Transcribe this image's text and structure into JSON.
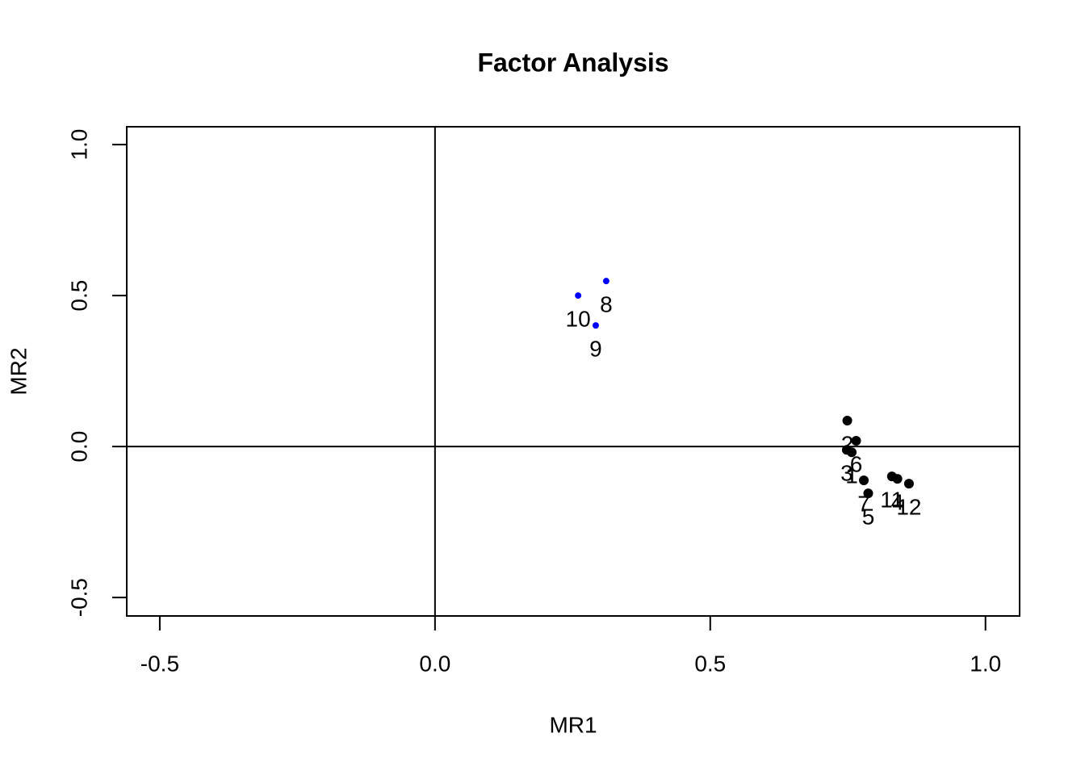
{
  "chart_data": {
    "type": "scatter",
    "title": "Factor Analysis",
    "x_label": "MR1",
    "y_label": "MR2",
    "xlim": [
      -0.56,
      1.062
    ],
    "ylim": [
      -0.561,
      1.059
    ],
    "xticks": [
      -0.5,
      {
        "value": 0,
        "label": "0.0"
      },
      0.5,
      {
        "value": 1,
        "label": "1.0"
      }
    ],
    "yticks": [
      {
        "value": -0.5,
        "label": "-0.5"
      },
      {
        "value": 0,
        "label": "0.0"
      },
      0.5,
      {
        "value": 1,
        "label": "1.0"
      }
    ],
    "hlines": [
      0
    ],
    "vlines": [
      0
    ],
    "series": [
      {
        "color": "#000000",
        "marker_radius": 6,
        "labels": [
          "1",
          "2",
          "3",
          "4",
          "5",
          "6",
          "7",
          "11",
          "12"
        ],
        "x": [
          0.757,
          0.749,
          0.748,
          0.84,
          0.787,
          0.765,
          0.779,
          0.83,
          0.861
        ],
        "values": [
          -0.019,
          0.086,
          -0.011,
          -0.107,
          -0.155,
          0.019,
          -0.112,
          -0.099,
          -0.123
        ]
      },
      {
        "color": "#0000ff",
        "marker_radius": 4,
        "labels": [
          "8",
          "9",
          "10"
        ],
        "x": [
          0.311,
          0.292,
          0.26
        ],
        "values": [
          0.548,
          0.401,
          0.5
        ]
      }
    ]
  }
}
